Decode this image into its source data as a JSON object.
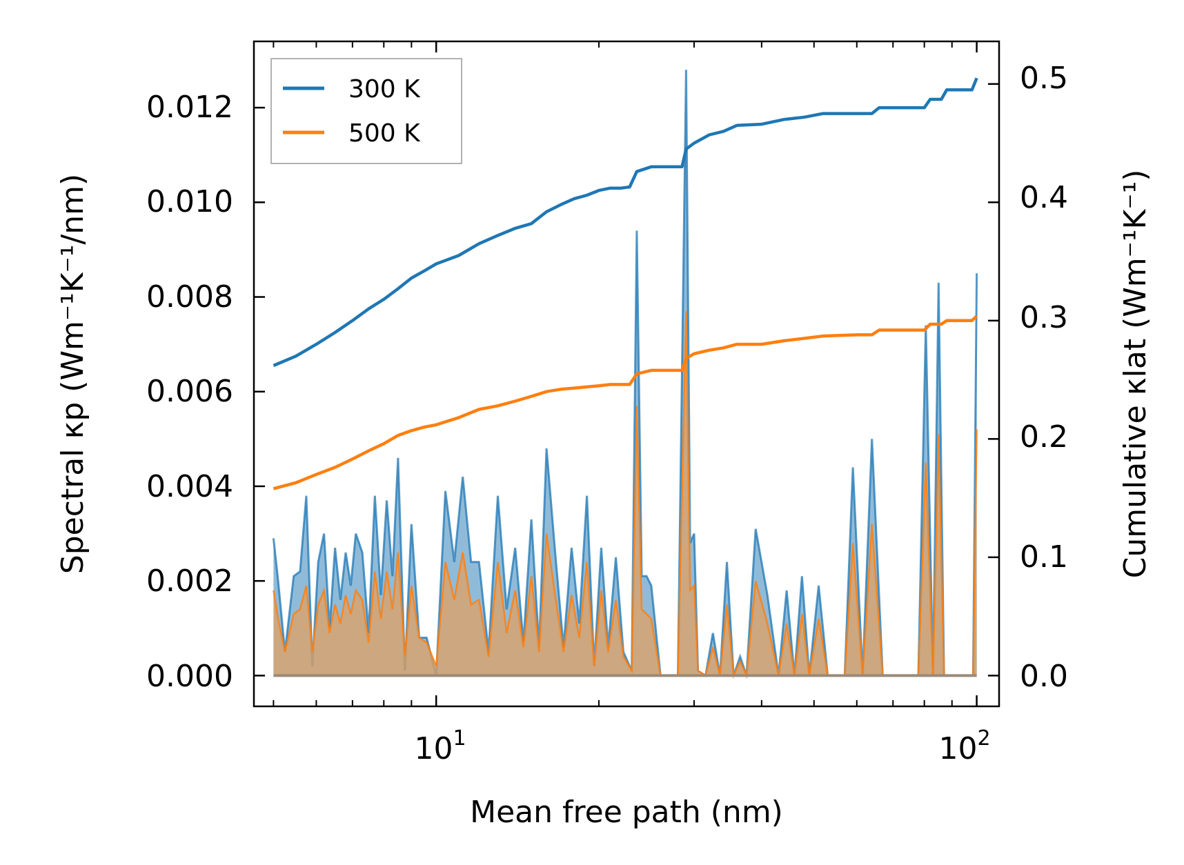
{
  "chart_data": {
    "type": "line",
    "xscale": "log",
    "xlabel": "Mean free path (nm)",
    "ylabel_left": "Spectral κp (Wm⁻¹K⁻¹/nm)",
    "ylabel_right": "Cumulative κlat (Wm⁻¹K⁻¹)",
    "xlim": [
      4.6,
      110
    ],
    "ylim_left": [
      -0.00065,
      0.0134
    ],
    "ylim_right": [
      -0.026,
      0.536
    ],
    "x_ticks": [
      10,
      100
    ],
    "x_tick_labels": [
      {
        "base": "10",
        "exp": "1"
      },
      {
        "base": "10",
        "exp": "2"
      }
    ],
    "y_left_ticks": [
      0.0,
      0.002,
      0.004,
      0.006,
      0.008,
      0.01,
      0.012
    ],
    "y_left_tick_labels": [
      "0.000",
      "0.002",
      "0.004",
      "0.006",
      "0.008",
      "0.010",
      "0.012"
    ],
    "y_right_ticks": [
      0.0,
      0.1,
      0.2,
      0.3,
      0.4,
      0.5
    ],
    "y_right_tick_labels": [
      "0.0",
      "0.1",
      "0.2",
      "0.3",
      "0.4",
      "0.5"
    ],
    "legend": {
      "position": "top-left",
      "entries": [
        "300 K",
        "500 K"
      ]
    },
    "colors": {
      "300K": "#1f77b4",
      "500K": "#ff7f0e",
      "fill300": "#1f77b4",
      "fill500": "#e0a060"
    },
    "spectral_300K": {
      "x": [
        5.0,
        5.1,
        5.25,
        5.45,
        5.6,
        5.75,
        5.9,
        6.05,
        6.2,
        6.35,
        6.5,
        6.65,
        6.8,
        6.95,
        7.1,
        7.3,
        7.5,
        7.7,
        7.9,
        8.1,
        8.3,
        8.5,
        8.75,
        9.0,
        9.3,
        9.6,
        10.0,
        10.4,
        10.8,
        11.2,
        11.6,
        12.0,
        12.5,
        13.0,
        13.5,
        14.0,
        14.5,
        15.0,
        15.5,
        16.0,
        16.6,
        17.2,
        17.8,
        18.4,
        19.0,
        19.6,
        20.2,
        20.8,
        21.5,
        22.2,
        23.0,
        23.5,
        24.0,
        24.5,
        25.0,
        26.0,
        28.0,
        29.0,
        29.5,
        30.0,
        30.5,
        31.5,
        32.5,
        33.5,
        34.5,
        35.5,
        36.5,
        37.5,
        39.0,
        41.0,
        43.0,
        44.5,
        46.0,
        47.5,
        49.0,
        51.0,
        53.0,
        55.0,
        57.0,
        59.0,
        61.5,
        64.0,
        67.0,
        70.0,
        74.0,
        78.0,
        80.5,
        83.0,
        85.0,
        87.0,
        89.0,
        92.0,
        96.0,
        98.5,
        100.0
      ],
      "y": [
        0.0029,
        0.002,
        0.0005,
        0.0021,
        0.0022,
        0.0038,
        0.0002,
        0.0024,
        0.003,
        0.001,
        0.0027,
        0.0016,
        0.0026,
        0.0019,
        0.003,
        0.0026,
        0.0009,
        0.0038,
        0.0017,
        0.0037,
        0.0021,
        0.0046,
        0.0001,
        0.0032,
        0.0008,
        0.0008,
        0.0,
        0.0039,
        0.0024,
        0.0042,
        0.0024,
        0.0024,
        0.0005,
        0.0038,
        0.0014,
        0.0027,
        0.0007,
        0.0033,
        0.0006,
        0.0048,
        0.0026,
        0.0006,
        0.0027,
        0.0011,
        0.0038,
        0.0002,
        0.0027,
        0.0006,
        0.0025,
        0.0005,
        0.0001,
        0.0094,
        0.0021,
        0.0021,
        0.0019,
        0.0,
        0.0,
        0.0128,
        0.0028,
        0.003,
        0.0001,
        0.0,
        0.0009,
        0.0,
        0.0024,
        0.0,
        0.0004,
        0.0,
        0.0031,
        0.0017,
        0.0,
        0.0018,
        0.0,
        0.0021,
        0.0,
        0.0019,
        0.0,
        0.0,
        0.0,
        0.0044,
        0.0,
        0.005,
        0.0,
        0.0,
        0.0,
        0.0,
        0.0074,
        0.0,
        0.0083,
        0.0,
        0.0,
        0.0,
        0.0,
        0.0,
        0.0085
      ]
    },
    "spectral_500K": {
      "x": [
        5.0,
        5.1,
        5.25,
        5.45,
        5.6,
        5.75,
        5.9,
        6.05,
        6.2,
        6.35,
        6.5,
        6.65,
        6.8,
        6.95,
        7.1,
        7.3,
        7.5,
        7.7,
        7.9,
        8.1,
        8.3,
        8.5,
        8.75,
        9.0,
        9.3,
        9.6,
        10.0,
        10.4,
        10.8,
        11.2,
        11.6,
        12.0,
        12.5,
        13.0,
        13.5,
        14.0,
        14.5,
        15.0,
        15.5,
        16.0,
        16.6,
        17.2,
        17.8,
        18.4,
        19.0,
        19.6,
        20.2,
        20.8,
        21.5,
        22.2,
        23.0,
        23.5,
        24.0,
        24.5,
        25.0,
        26.0,
        28.0,
        29.0,
        29.5,
        30.0,
        30.5,
        31.5,
        32.5,
        33.5,
        34.5,
        35.5,
        36.5,
        37.5,
        39.0,
        41.0,
        43.0,
        44.5,
        46.0,
        47.5,
        49.0,
        51.0,
        53.0,
        55.0,
        57.0,
        59.0,
        61.5,
        64.0,
        67.0,
        70.0,
        74.0,
        78.0,
        80.5,
        83.0,
        85.0,
        87.0,
        89.0,
        92.0,
        96.0,
        98.5,
        100.0
      ],
      "y": [
        0.0018,
        0.0012,
        0.0005,
        0.0013,
        0.0014,
        0.0019,
        0.0005,
        0.0015,
        0.0018,
        0.0009,
        0.0015,
        0.0011,
        0.0017,
        0.0013,
        0.0018,
        0.0016,
        0.0007,
        0.0022,
        0.0012,
        0.0022,
        0.0014,
        0.0026,
        0.0004,
        0.0019,
        0.0008,
        0.0007,
        0.0002,
        0.0024,
        0.0016,
        0.0026,
        0.0015,
        0.0016,
        0.0004,
        0.0024,
        0.0009,
        0.0018,
        0.0006,
        0.0021,
        0.0005,
        0.003,
        0.0017,
        0.0005,
        0.0017,
        0.0008,
        0.0024,
        0.0002,
        0.0018,
        0.0005,
        0.0016,
        0.0004,
        0.0001,
        0.0057,
        0.0014,
        0.0013,
        0.0012,
        0.0,
        0.0,
        0.0077,
        0.0018,
        0.0019,
        0.0001,
        0.0,
        0.0006,
        0.0,
        0.0015,
        0.0,
        0.0003,
        0.0,
        0.002,
        0.0011,
        0.0,
        0.0011,
        0.0,
        0.0013,
        0.0,
        0.0012,
        0.0,
        0.0,
        0.0,
        0.0028,
        0.0,
        0.0032,
        0.0,
        0.0,
        0.0,
        0.0,
        0.0045,
        0.0,
        0.0051,
        0.0,
        0.0,
        0.0,
        0.0,
        0.0,
        0.0052
      ]
    },
    "cumulative_300K": {
      "x": [
        5.0,
        5.5,
        6.0,
        6.5,
        7.0,
        7.5,
        8.0,
        8.5,
        9.0,
        9.5,
        10.0,
        11.0,
        12.0,
        13.0,
        14.0,
        15.0,
        16.0,
        17.0,
        18.0,
        19.0,
        20.0,
        21.0,
        22.0,
        22.8,
        23.5,
        25.0,
        27.0,
        28.5,
        29.0,
        30.0,
        32.0,
        34.0,
        36.0,
        40.0,
        44.0,
        48.0,
        52.0,
        60.0,
        64.0,
        66.0,
        75.0,
        80.0,
        82.0,
        86.0,
        88.0,
        98.0,
        100.0
      ],
      "y": [
        0.262,
        0.27,
        0.28,
        0.29,
        0.3,
        0.31,
        0.318,
        0.327,
        0.336,
        0.342,
        0.348,
        0.355,
        0.365,
        0.372,
        0.378,
        0.382,
        0.392,
        0.398,
        0.403,
        0.406,
        0.41,
        0.412,
        0.412,
        0.413,
        0.426,
        0.43,
        0.43,
        0.43,
        0.445,
        0.45,
        0.457,
        0.46,
        0.465,
        0.466,
        0.47,
        0.472,
        0.475,
        0.475,
        0.475,
        0.48,
        0.48,
        0.48,
        0.487,
        0.487,
        0.495,
        0.495,
        0.505
      ]
    },
    "cumulative_500K": {
      "x": [
        5.0,
        5.5,
        6.0,
        6.5,
        7.0,
        7.5,
        8.0,
        8.5,
        9.0,
        9.5,
        10.0,
        11.0,
        12.0,
        13.0,
        14.0,
        15.0,
        16.0,
        17.0,
        18.0,
        19.0,
        20.0,
        21.0,
        22.0,
        22.8,
        23.5,
        25.0,
        27.0,
        28.5,
        29.0,
        30.0,
        32.0,
        34.0,
        36.0,
        40.0,
        44.0,
        48.0,
        52.0,
        60.0,
        64.0,
        66.0,
        75.0,
        80.0,
        82.0,
        86.0,
        88.0,
        98.0,
        100.0
      ],
      "y": [
        0.158,
        0.163,
        0.17,
        0.176,
        0.183,
        0.19,
        0.196,
        0.203,
        0.207,
        0.21,
        0.212,
        0.218,
        0.225,
        0.228,
        0.232,
        0.236,
        0.24,
        0.242,
        0.243,
        0.244,
        0.245,
        0.246,
        0.246,
        0.246,
        0.255,
        0.258,
        0.258,
        0.258,
        0.268,
        0.272,
        0.275,
        0.277,
        0.28,
        0.28,
        0.283,
        0.285,
        0.287,
        0.288,
        0.288,
        0.292,
        0.292,
        0.292,
        0.297,
        0.297,
        0.3,
        0.3,
        0.304
      ]
    }
  }
}
